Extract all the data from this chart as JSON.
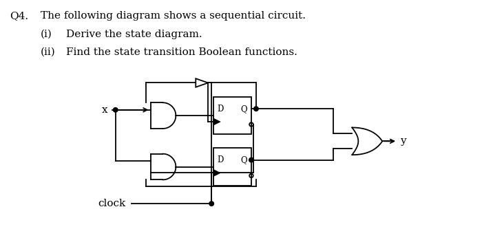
{
  "title_q": "Q4.",
  "line1": "The following diagram shows a sequential circuit.",
  "line2i": "(i)",
  "line2t": "Derive the state diagram.",
  "line3i": "(ii)",
  "line3t": "Find the state transition Boolean functions.",
  "bg_color": "#ffffff",
  "fg_color": "#000000",
  "font_size_text": 11,
  "label_x": "x",
  "label_y": "y",
  "label_clock": "clock",
  "label_D": "D",
  "label_Q": "Q",
  "lw": 1.3,
  "dot_r": 0.033
}
